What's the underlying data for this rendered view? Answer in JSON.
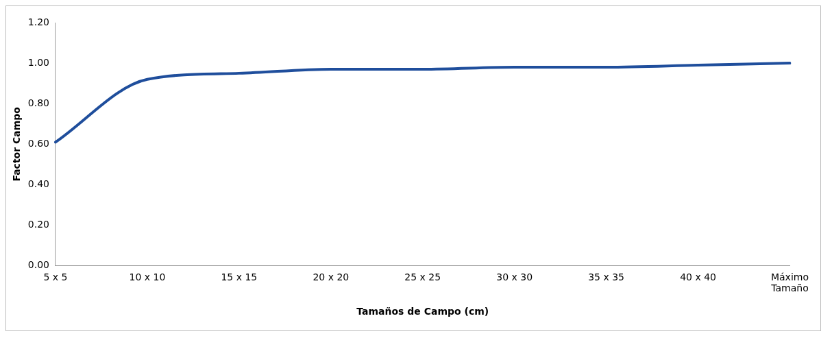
{
  "chart_data": {
    "type": "line",
    "xlabel": "Tamaños de Campo (cm)",
    "ylabel": "Factor Campo",
    "categories": [
      "5 x 5",
      "10 x 10",
      "15 x 15",
      "20 x 20",
      "25 x 25",
      "30 x 30",
      "35 x 35",
      "40 x 40",
      "Máximo\nTamaño"
    ],
    "series": [
      {
        "color": "#1f4e9c",
        "values": [
          0.61,
          0.92,
          0.95,
          0.97,
          0.97,
          0.98,
          0.98,
          0.99,
          1.0
        ]
      }
    ],
    "ylim": [
      0,
      1.2
    ],
    "yticks": [
      {
        "value": 0,
        "label": "0.00"
      },
      {
        "value": 0.2,
        "label": "0.20"
      },
      {
        "value": 0.4,
        "label": "0.40"
      },
      {
        "value": 0.6,
        "label": "0.60"
      },
      {
        "value": 0.8,
        "label": "0.80"
      },
      {
        "value": 1.0,
        "label": "1.00"
      },
      {
        "value": 1.2,
        "label": "1.20"
      }
    ],
    "grid": false,
    "legend": false,
    "marker": "none",
    "line_style": "solid"
  }
}
